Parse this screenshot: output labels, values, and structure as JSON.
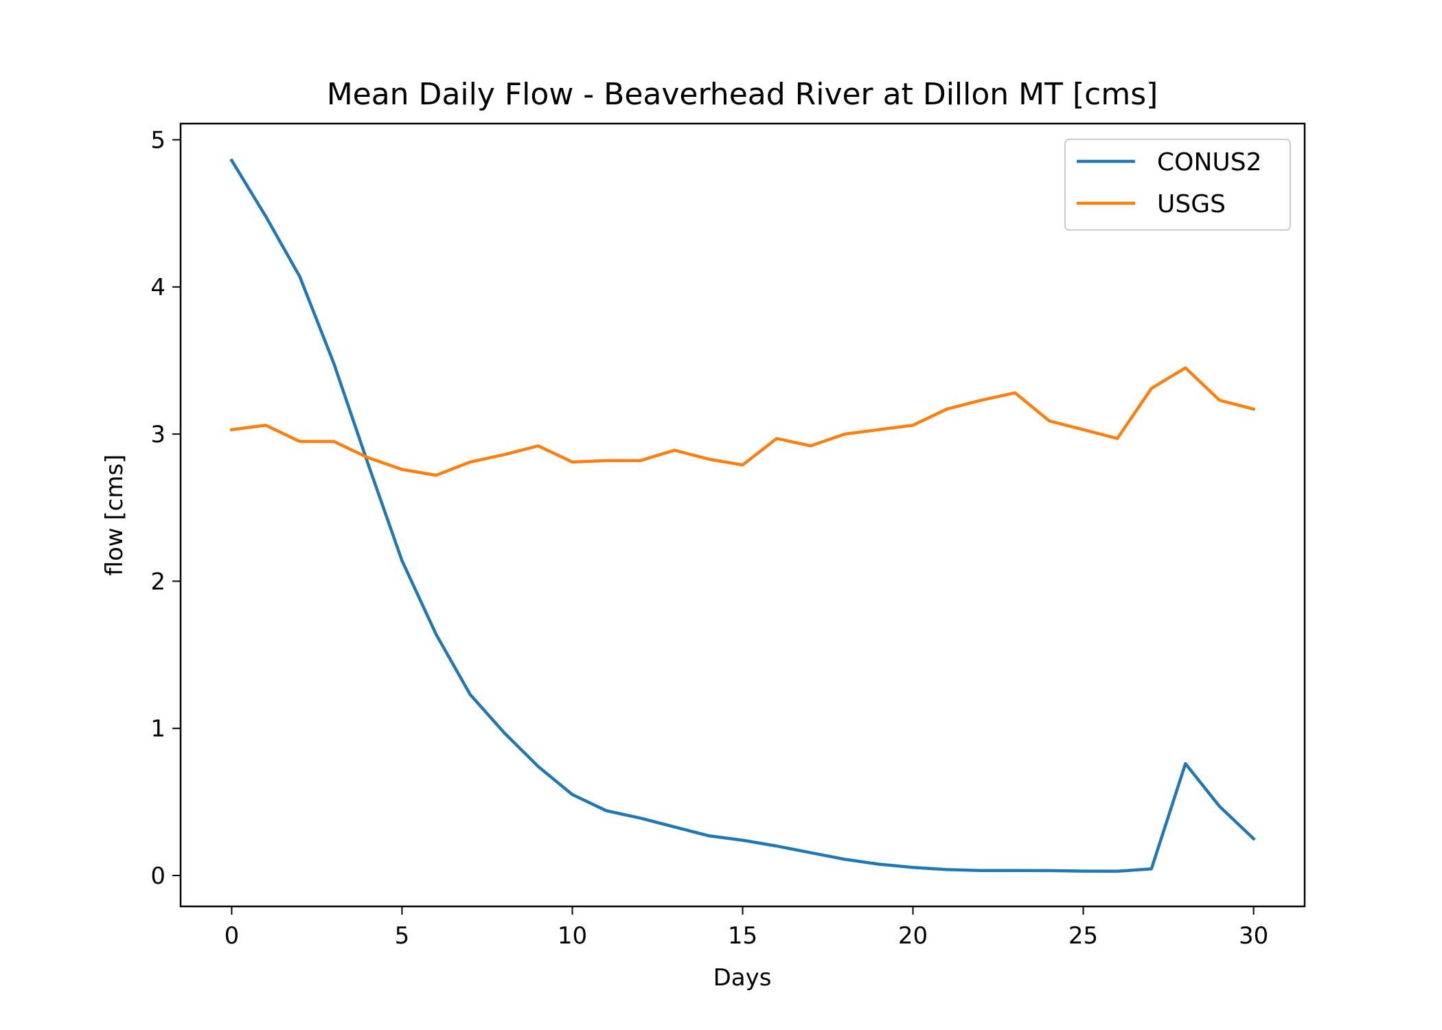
{
  "chart_data": {
    "type": "line",
    "title": "Mean Daily Flow - Beaverhead River at Dillon MT [cms]",
    "xlabel": "Days",
    "ylabel": "flow [cms]",
    "xlim": [
      -1.5,
      31.5
    ],
    "ylim": [
      -0.21,
      5.11
    ],
    "xticks": [
      0,
      5,
      10,
      15,
      20,
      25,
      30
    ],
    "yticks": [
      0,
      1,
      2,
      3,
      4,
      5
    ],
    "grid": false,
    "legend_position": "top-right",
    "x": [
      0,
      1,
      2,
      3,
      4,
      5,
      6,
      7,
      8,
      9,
      10,
      11,
      12,
      13,
      14,
      15,
      16,
      17,
      18,
      19,
      20,
      21,
      22,
      23,
      24,
      25,
      26,
      27,
      28,
      29,
      30
    ],
    "series": [
      {
        "name": "CONUS2",
        "color": "#1f77b4",
        "values": [
          4.86,
          4.48,
          4.07,
          3.48,
          2.8,
          2.14,
          1.64,
          1.23,
          0.97,
          0.74,
          0.55,
          0.44,
          0.39,
          0.33,
          0.27,
          0.24,
          0.2,
          0.155,
          0.11,
          0.077,
          0.055,
          0.04,
          0.034,
          0.034,
          0.033,
          0.03,
          0.029,
          0.045,
          0.76,
          0.47,
          0.25
        ]
      },
      {
        "name": "USGS",
        "color": "#ff7f0e",
        "values": [
          3.03,
          3.06,
          2.95,
          2.95,
          2.84,
          2.76,
          2.72,
          2.81,
          2.86,
          2.92,
          2.81,
          2.82,
          2.82,
          2.89,
          2.83,
          2.79,
          2.97,
          2.92,
          3.0,
          3.03,
          3.06,
          3.17,
          3.23,
          3.28,
          3.09,
          3.03,
          2.97,
          3.31,
          3.45,
          3.23,
          3.17
        ]
      }
    ]
  }
}
